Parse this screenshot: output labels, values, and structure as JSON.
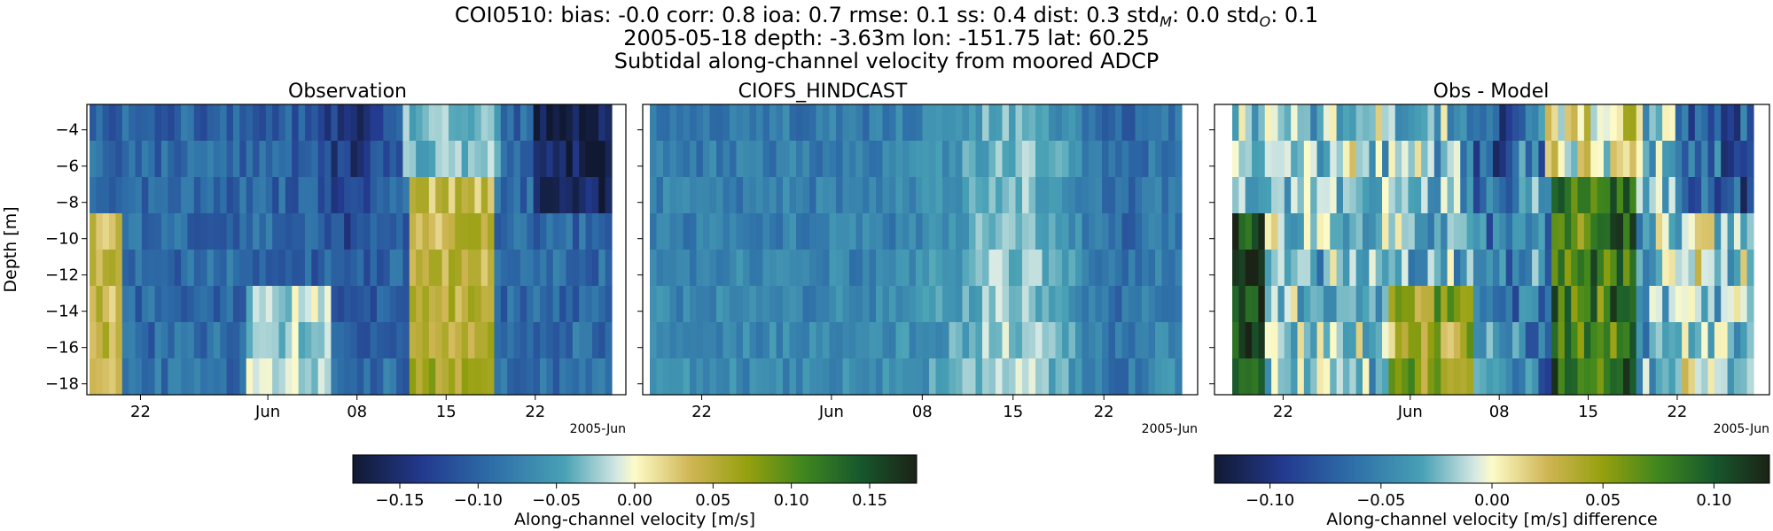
{
  "figure": {
    "title_line1_prefix": "COI0510: bias: -0.0  corr: 0.8  ioa: 0.7  rmse: 0.1  ss: 0.4  dist: 0.3  std",
    "std_m_sub": "M",
    "std_m_value": ": 0.0  std",
    "std_o_sub": "O",
    "std_o_value": ": 0.1",
    "title_line2": "2005-05-18 depth: -3.63m lon: -151.75 lat: 60.25",
    "title_line3": "Subtidal along-channel velocity from moored ADCP"
  },
  "chart_data": [
    {
      "type": "heatmap",
      "title": "Observation",
      "ylabel": "Depth [m]",
      "xlabel": "",
      "x_offset_label": "2005-Jun",
      "x_ticks": [
        "22",
        "Jun",
        "08",
        "15",
        "22"
      ],
      "x_tick_dates": [
        "2005-05-22",
        "2005-06-01",
        "2005-06-08",
        "2005-06-15",
        "2005-06-22"
      ],
      "x_range": [
        "2005-05-18",
        "2005-06-28"
      ],
      "y_ticks": [
        -4,
        -6,
        -8,
        -10,
        -12,
        -14,
        -16,
        -18
      ],
      "ylim": [
        -18.6,
        -2.6
      ],
      "depth_bins": [
        -3.63,
        -5.63,
        -7.63,
        -9.63,
        -11.63,
        -13.63,
        -15.63,
        -17.63
      ],
      "colormap": "delta",
      "vmin": -0.18,
      "vmax": 0.18,
      "colorbar": {
        "label": "Along-channel velocity [m/s]",
        "ticks": [
          -0.15,
          -0.1,
          -0.05,
          0.0,
          0.05,
          0.1,
          0.15
        ],
        "tick_labels": [
          "−0.15",
          "−0.10",
          "−0.05",
          "0.00",
          "0.05",
          "0.10",
          "0.15"
        ]
      }
    },
    {
      "type": "heatmap",
      "title": "CIOFS_HINDCAST",
      "x_offset_label": "2005-Jun",
      "x_ticks": [
        "22",
        "Jun",
        "08",
        "15",
        "22"
      ],
      "x_tick_dates": [
        "2005-05-22",
        "2005-06-01",
        "2005-06-08",
        "2005-06-15",
        "2005-06-22"
      ],
      "x_range": [
        "2005-05-18",
        "2005-06-28"
      ],
      "ylim": [
        -18.6,
        -2.6
      ],
      "colormap": "delta",
      "vmin": -0.18,
      "vmax": 0.18
    },
    {
      "type": "heatmap",
      "title": "Obs - Model",
      "x_offset_label": "2005-Jun",
      "x_ticks": [
        "22",
        "Jun",
        "08",
        "15",
        "22"
      ],
      "x_tick_dates": [
        "2005-05-22",
        "2005-06-01",
        "2005-06-08",
        "2005-06-15",
        "2005-06-22"
      ],
      "x_range": [
        "2005-05-18",
        "2005-06-28"
      ],
      "ylim": [
        -18.6,
        -2.6
      ],
      "colormap": "delta",
      "vmin": -0.125,
      "vmax": 0.125,
      "colorbar": {
        "label": "Along-channel velocity [m/s] difference",
        "ticks": [
          -0.1,
          -0.05,
          0.0,
          0.05,
          0.1
        ],
        "tick_labels": [
          "−0.10",
          "−0.05",
          "0.00",
          "0.05",
          "0.10"
        ]
      }
    }
  ]
}
